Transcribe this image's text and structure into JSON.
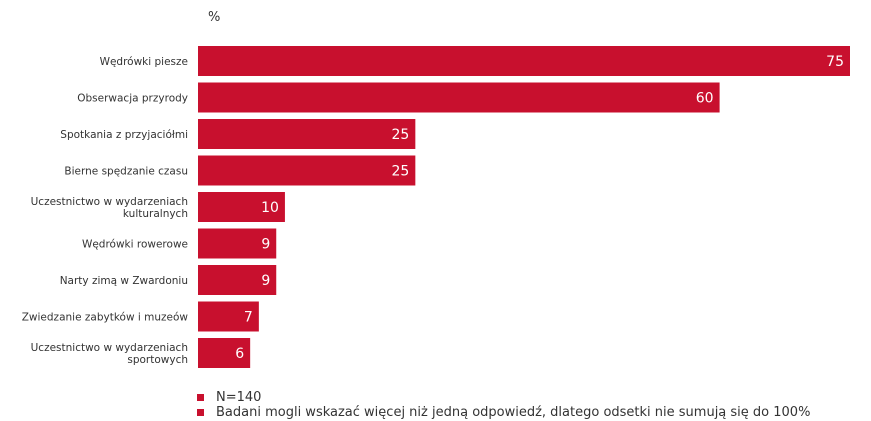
{
  "chart_data": {
    "type": "bar",
    "orientation": "horizontal",
    "unit_label": "%",
    "categories": [
      [
        "Wędrówki piesze"
      ],
      [
        "Obserwacja przyrody"
      ],
      [
        "Spotkania z przyjaciółmi"
      ],
      [
        "Bierne spędzanie czasu"
      ],
      [
        "Uczestnictwo w wydarzeniach",
        "kulturalnych"
      ],
      [
        "Wędrówki rowerowe"
      ],
      [
        "Narty zimą w Zwardoniu"
      ],
      [
        "Zwiedzanie zabytków i muzeów"
      ],
      [
        "Uczestnictwo w wydarzeniach",
        "sportowych"
      ]
    ],
    "values": [
      75,
      60,
      25,
      25,
      10,
      9,
      9,
      7,
      6
    ],
    "xlim": [
      0,
      75
    ],
    "bar_color": "#c8102e",
    "label_color": "#ffffff",
    "grid": false
  },
  "footnotes": [
    "N=140",
    "Badani mogli wskazać więcej niż jedną odpowiedź, dlatego odsetki nie sumują się do 100%"
  ]
}
